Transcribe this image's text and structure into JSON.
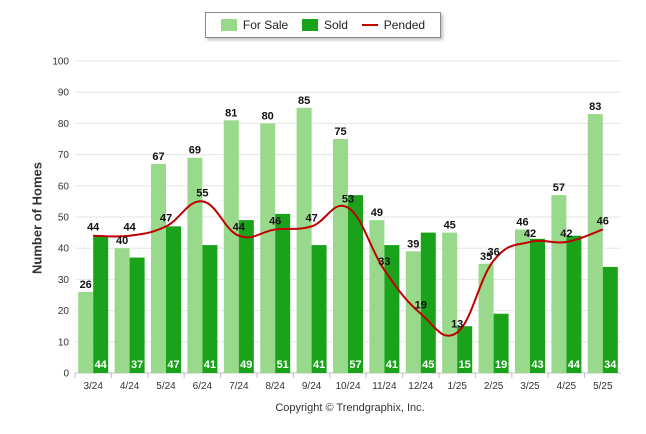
{
  "chart_data": {
    "type": "bar",
    "title": "",
    "ylabel": "Number of Homes",
    "xlabel": "",
    "ylim": [
      0,
      100
    ],
    "yticks": [
      0,
      10,
      20,
      30,
      40,
      50,
      60,
      70,
      80,
      90,
      100
    ],
    "grid": true,
    "legend_position": "top-center",
    "categories": [
      "3/24",
      "4/24",
      "5/24",
      "6/24",
      "7/24",
      "8/24",
      "9/24",
      "10/24",
      "11/24",
      "12/24",
      "1/25",
      "2/25",
      "3/25",
      "4/25",
      "5/25"
    ],
    "series": [
      {
        "name": "For Sale",
        "type": "bar",
        "color": "#99d98c",
        "values": [
          26,
          40,
          67,
          69,
          81,
          80,
          85,
          75,
          49,
          39,
          45,
          35,
          46,
          57,
          83
        ]
      },
      {
        "name": "Sold",
        "type": "bar",
        "color": "#1aa31a",
        "values": [
          44,
          37,
          47,
          41,
          49,
          51,
          41,
          57,
          41,
          45,
          15,
          19,
          43,
          44,
          34
        ]
      },
      {
        "name": "Pended",
        "type": "line",
        "color": "#c00000",
        "values": [
          44,
          44,
          47,
          55,
          44,
          46,
          47,
          53,
          33,
          19,
          13,
          36,
          42,
          42,
          46
        ]
      }
    ]
  },
  "footer": {
    "copyright": "Copyright © Trendgraphix, Inc."
  }
}
